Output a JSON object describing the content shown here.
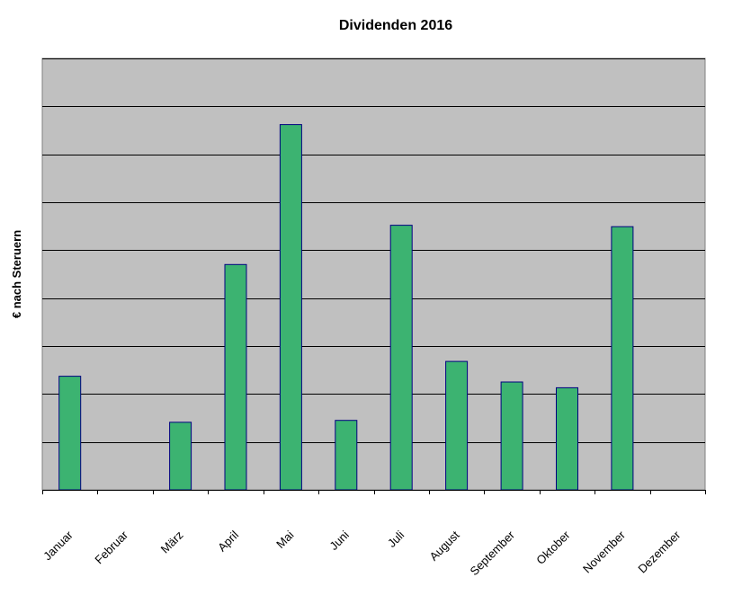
{
  "chart_data": {
    "type": "bar",
    "title": "Dividenden 2016",
    "xlabel": "",
    "ylabel": "€ nach Steruern",
    "categories": [
      "Januar",
      "Februar",
      "März",
      "April",
      "Mai",
      "Juni",
      "Juli",
      "August",
      "September",
      "Oktober",
      "November",
      "Dezember"
    ],
    "values": [
      23.7,
      0,
      14.1,
      47.0,
      76.2,
      14.5,
      55.2,
      26.8,
      22.5,
      21.3,
      54.9,
      0
    ],
    "ylim": [
      0,
      90
    ],
    "y_tick_step": 10,
    "y_tick_labels_shown": false,
    "grid": true,
    "legend": "none",
    "colors": {
      "plot_background": "#c0c0c0",
      "bar_fill": "#3cb371",
      "bar_stroke": "#000080",
      "gridline": "#000000",
      "axis": "#000000"
    }
  }
}
